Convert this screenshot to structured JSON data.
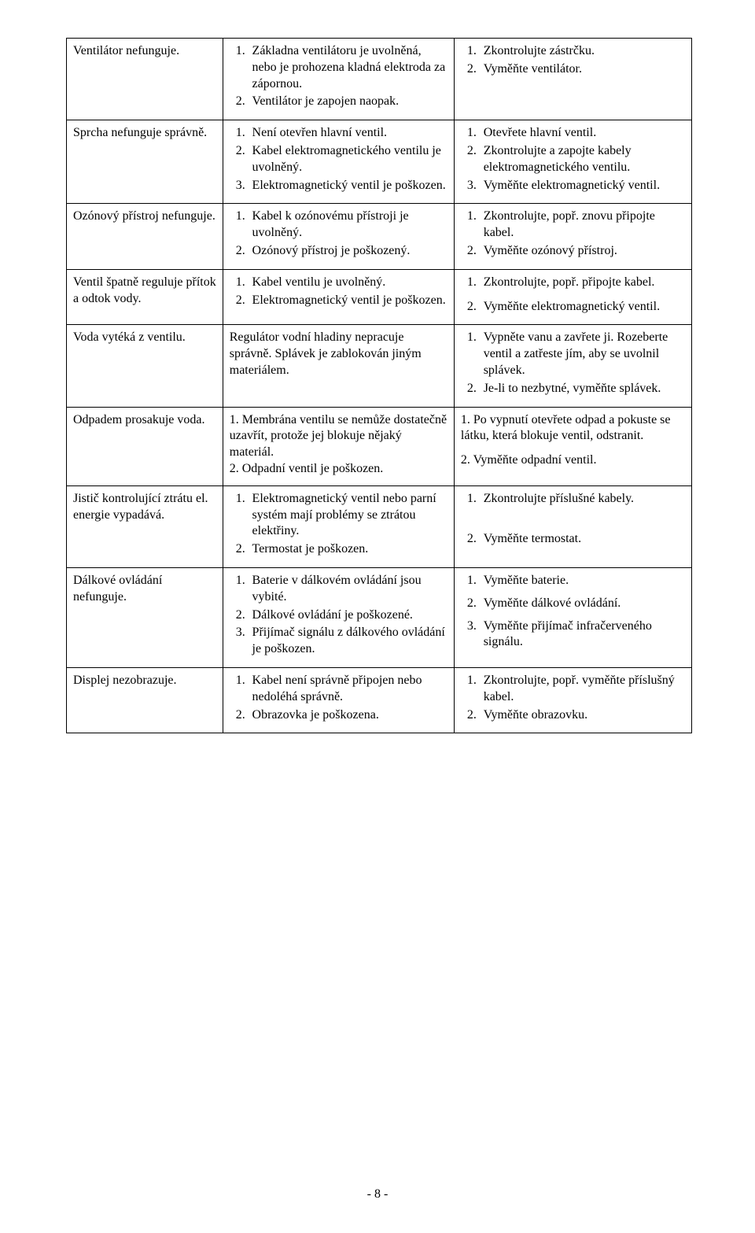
{
  "rows": [
    {
      "col1": "Ventilátor nefunguje.",
      "col2_items": [
        "Základna ventilátoru je uvolněná, nebo je prohozena kladná elektroda za zápornou.",
        "Ventilátor je zapojen naopak."
      ],
      "col3_items": [
        "Zkontrolujte zástrčku.",
        "Vyměňte ventilátor."
      ]
    },
    {
      "col1": "Sprcha nefunguje správně.",
      "col2_items": [
        "Není otevřen hlavní ventil.",
        "Kabel elektromagnetického ventilu je uvolněný.",
        "Elektromagnetický ventil je poškozen."
      ],
      "col3_items": [
        "Otevřete hlavní ventil.",
        "Zkontrolujte a zapojte kabely elektromagnetického ventilu.",
        "Vyměňte elektromagnetický ventil."
      ]
    },
    {
      "col1": "Ozónový přístroj nefunguje.",
      "col2_items": [
        "Kabel k ozónovému přístroji je uvolněný.",
        "Ozónový přístroj je poškozený."
      ],
      "col3_items": [
        "Zkontrolujte, popř. znovu připojte kabel.",
        "Vyměňte ozónový přístroj."
      ]
    },
    {
      "col1": "Ventil špatně reguluje přítok a odtok vody.",
      "col2_items": [
        "Kabel ventilu je uvolněný.",
        "Elektromagnetický ventil je poškozen."
      ],
      "col3_items": [
        "Zkontrolujte, popř. připojte kabel.",
        "",
        "Vyměňte elektromagnetický ventil."
      ],
      "col3_raw": "<ol><li><span data-name=\"cell-text\" data-interactable=\"false\">Zkontrolujte, popř. připojte kabel.</span></li></ol><div style=\"height:8px\"></div><ol start=\"2\"><li><span data-name=\"cell-text\" data-interactable=\"false\">Vyměňte elektromagnetický ventil.</span></li></ol>"
    },
    {
      "col1": "Voda vytéká z ventilu.",
      "col2_plain": "Regulátor vodní hladiny nepracuje správně. Splávek je zablokován jiným materiálem.",
      "col3_items": [
        "Vypněte vanu a zavřete ji. Rozeberte ventil a zatřeste jím, aby se uvolnil splávek.",
        "Je-li to nezbytné, vyměňte splávek."
      ]
    },
    {
      "col1": "Odpadem prosakuje voda.",
      "col2_mixed": [
        "1. Membrána ventilu se nemůže dostatečně uzavřít, protože jej blokuje nějaký materiál.",
        "2. Odpadní ventil je poškozen."
      ],
      "col3_mixed": [
        "1.   Po vypnutí otevřete odpad a pokuste se látku, která blokuje ventil, odstranit.",
        "",
        "2.  Vyměňte odpadní ventil."
      ]
    },
    {
      "col1": "Jistič kontrolující ztrátu el. energie vypadává.",
      "col2_items": [
        "Elektromagnetický ventil nebo parní systém mají problémy se ztrátou elektřiny.",
        "Termostat je poškozen."
      ],
      "col3_raw": "<ol><li><span data-name=\"cell-text\" data-interactable=\"false\">Zkontrolujte příslušné kabely.</span></li></ol><div style=\"height:28px\"></div><ol start=\"2\"><li><span data-name=\"cell-text\" data-interactable=\"false\">Vyměňte termostat.</span></li></ol>"
    },
    {
      "col1": "Dálkové ovládání nefunguje.",
      "col2_items": [
        "Baterie v dálkovém ovládání jsou vybité.",
        "Dálkové ovládání je poškozené.",
        "Přijímač signálu z dálkového ovládání je poškozen."
      ],
      "col3_raw": "<ol class=\"spaced\"><li><span data-name=\"cell-text\" data-interactable=\"false\">Vyměňte baterie.</span></li></ol><div style=\"height:6px\"></div><ol start=\"2\"><li><span data-name=\"cell-text\" data-interactable=\"false\">Vyměňte dálkové ovládání.</span></li></ol><div style=\"height:6px\"></div><ol start=\"3\"><li><span data-name=\"cell-text\" data-interactable=\"false\">Vyměňte přijímač infračerveného signálu.</span></li></ol>"
    },
    {
      "col1": "Displej nezobrazuje.",
      "col2_items": [
        "Kabel není správně připojen nebo nedoléhá správně.",
        "Obrazovka je poškozena."
      ],
      "col3_items": [
        "Zkontrolujte, popř. vyměňte příslušný kabel.",
        "Vyměňte obrazovku."
      ]
    }
  ],
  "page_number": "- 8 -"
}
